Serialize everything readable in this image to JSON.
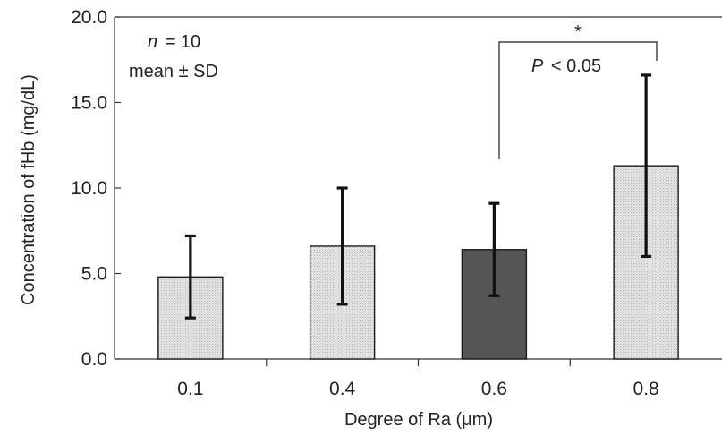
{
  "chart_data": {
    "type": "bar",
    "xlabel": "Degree of Ra (μm)",
    "ylabel": "Concentration of fHb (mg/dL)",
    "ylim": [
      0,
      20
    ],
    "yticks": [
      "0.0",
      "5.0",
      "10.0",
      "15.0",
      "20.0"
    ],
    "ytick_values": [
      0,
      5,
      10,
      15,
      20
    ],
    "categories": [
      "0.1",
      "0.4",
      "0.6",
      "0.8"
    ],
    "values": [
      4.8,
      6.6,
      6.4,
      11.3
    ],
    "errors": [
      2.4,
      3.4,
      2.7,
      5.3
    ],
    "highlighted_category": "0.6",
    "colors": {
      "bar_light": "#dedede",
      "bar_dark": "#555555",
      "edge": "#1a1a1a"
    },
    "legend": "none",
    "grid": false,
    "annotations": {
      "n_label": "n",
      "n_value": "= 10",
      "stat_label": "mean ± SD",
      "significance_star": "*",
      "p_label": "P",
      "p_value": "< 0.05"
    }
  }
}
